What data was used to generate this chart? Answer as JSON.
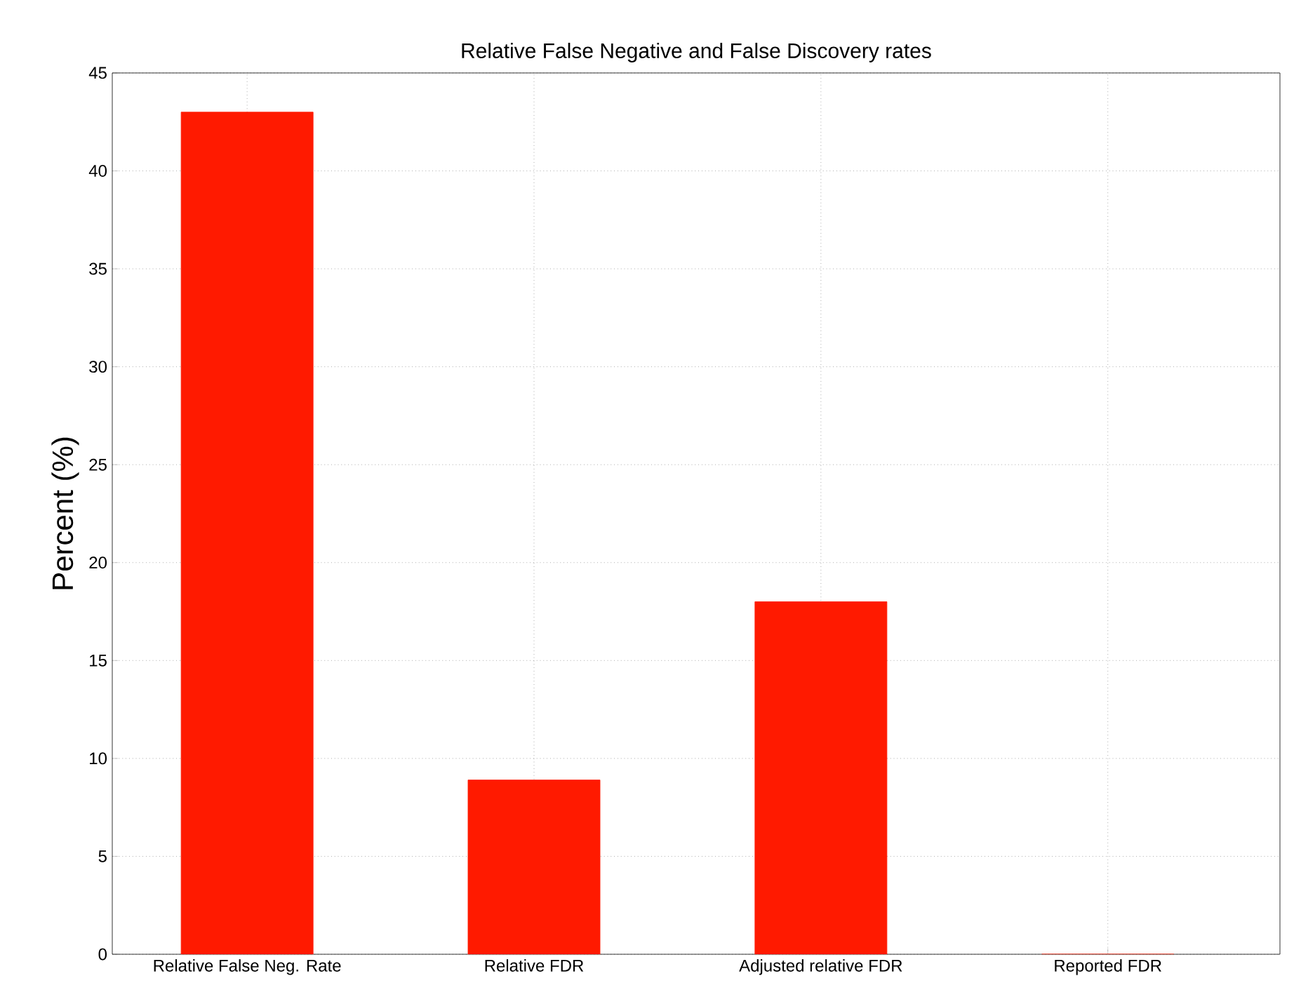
{
  "chart_data": {
    "type": "bar",
    "title": "Relative False Negative and False Discovery rates",
    "categories": [
      "Relative False Neg. Rate",
      "Relative FDR",
      "Adjusted relative FDR",
      "Reported FDR"
    ],
    "values": [
      43,
      8.9,
      18,
      0
    ],
    "color": "#ff1a00",
    "ylabel": "Percent (%)",
    "ylim": [
      0,
      45
    ],
    "yticks": [
      0,
      5,
      10,
      15,
      20,
      25,
      30,
      35,
      40,
      45
    ],
    "grid": true
  }
}
